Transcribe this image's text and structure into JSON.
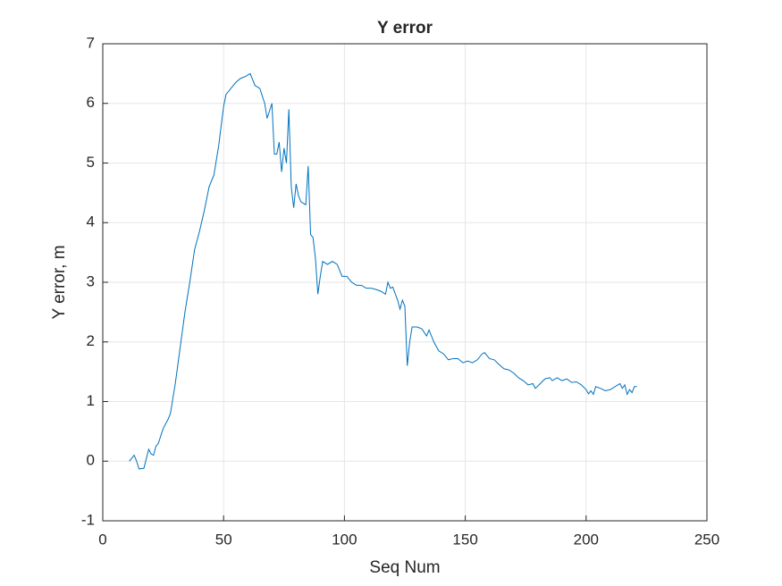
{
  "chart_data": {
    "type": "line",
    "title": "Y error",
    "xlabel": "Seq Num",
    "ylabel": "Y error, m",
    "x": [
      11,
      13,
      14,
      15,
      17,
      19,
      20,
      21,
      22,
      23,
      25,
      27,
      28,
      30,
      32,
      34,
      36,
      38,
      40,
      42,
      44,
      46,
      48,
      50,
      51,
      53,
      55,
      57,
      59,
      61,
      63,
      65,
      67,
      68,
      70,
      71,
      72,
      73,
      74,
      75,
      76,
      77,
      78,
      79,
      80,
      81,
      82,
      84,
      85,
      86,
      87,
      88,
      89,
      90,
      91,
      93,
      95,
      97,
      98,
      99,
      101,
      103,
      105,
      107,
      109,
      111,
      113,
      115,
      117,
      118,
      119,
      120,
      122,
      123,
      124,
      125,
      126,
      127,
      128,
      130,
      132,
      134,
      135,
      137,
      139,
      141,
      143,
      145,
      147,
      149,
      151,
      153,
      155,
      157,
      158,
      160,
      162,
      164,
      166,
      168,
      170,
      172,
      174,
      176,
      178,
      179,
      181,
      183,
      185,
      186,
      188,
      190,
      192,
      194,
      196,
      198,
      200,
      201,
      202,
      203,
      204,
      206,
      208,
      210,
      212,
      214,
      215,
      216,
      217,
      218,
      219,
      220,
      221
    ],
    "values": [
      0.0,
      0.1,
      0.0,
      -0.13,
      -0.12,
      0.2,
      0.12,
      0.1,
      0.25,
      0.3,
      0.55,
      0.7,
      0.8,
      1.3,
      1.9,
      2.5,
      3.0,
      3.55,
      3.85,
      4.2,
      4.6,
      4.8,
      5.3,
      5.95,
      6.15,
      6.25,
      6.35,
      6.42,
      6.45,
      6.5,
      6.3,
      6.25,
      6.0,
      5.75,
      6.0,
      5.15,
      5.15,
      5.35,
      4.85,
      5.25,
      5.0,
      5.9,
      4.6,
      4.25,
      4.65,
      4.45,
      4.35,
      4.3,
      4.95,
      3.8,
      3.75,
      3.4,
      2.8,
      3.1,
      3.35,
      3.3,
      3.35,
      3.3,
      3.2,
      3.1,
      3.1,
      3.0,
      2.95,
      2.95,
      2.9,
      2.9,
      2.88,
      2.85,
      2.8,
      3.0,
      2.9,
      2.92,
      2.7,
      2.55,
      2.7,
      2.6,
      1.6,
      2.0,
      2.25,
      2.25,
      2.22,
      2.1,
      2.2,
      2.0,
      1.85,
      1.8,
      1.7,
      1.72,
      1.72,
      1.65,
      1.68,
      1.65,
      1.7,
      1.8,
      1.82,
      1.72,
      1.7,
      1.62,
      1.55,
      1.53,
      1.48,
      1.4,
      1.35,
      1.28,
      1.3,
      1.22,
      1.3,
      1.38,
      1.4,
      1.35,
      1.4,
      1.35,
      1.38,
      1.32,
      1.33,
      1.28,
      1.2,
      1.13,
      1.18,
      1.12,
      1.25,
      1.22,
      1.18,
      1.2,
      1.25,
      1.3,
      1.22,
      1.28,
      1.12,
      1.2,
      1.15,
      1.25,
      1.25
    ],
    "color": "#0072bd",
    "xlim": [
      0,
      250
    ],
    "xticks": [
      0,
      50,
      100,
      150,
      200,
      250
    ],
    "ylim": [
      -1,
      7
    ],
    "yticks": [
      -1,
      0,
      1,
      2,
      3,
      4,
      5,
      6,
      7
    ],
    "grid": true
  }
}
